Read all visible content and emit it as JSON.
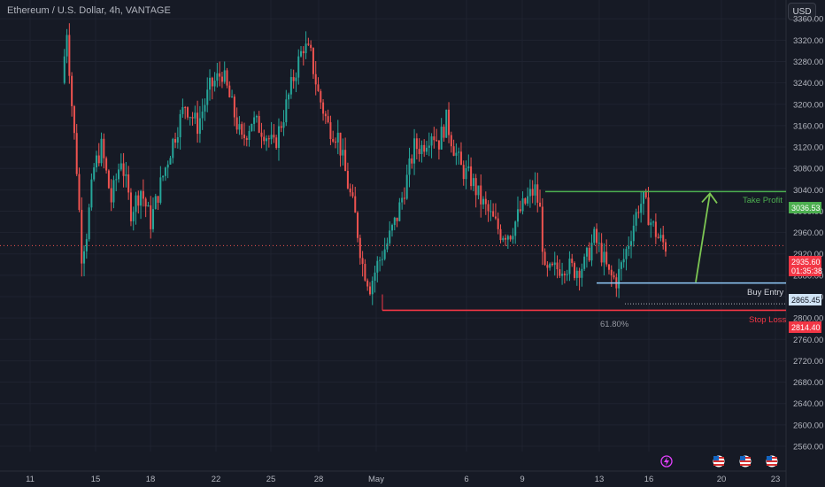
{
  "header": {
    "title": "Ethereum / U.S. Dollar, 4h, VANTAGE",
    "currency_button": "USD"
  },
  "annotations": {
    "take_profit": "Take Profit",
    "buy_entry": "Buy Entry",
    "stop_loss": "Stop Loss",
    "fib_level": "61.80%"
  },
  "badges": {
    "take_profit_price": "3036.53",
    "current_price": "2935.60",
    "countdown": "01:35:38",
    "buy_entry_price": "2865.45",
    "stop_loss_price": "2814.40"
  },
  "colors": {
    "background": "#161a25",
    "up_candle": "#26a69a",
    "down_candle": "#ef5350",
    "take_profit": "#4caf50",
    "buy_entry": "#90caf9",
    "stop_loss": "#f23645",
    "arrow": "#7cc653"
  },
  "icons": [
    "lightning-icon",
    "us-flag-icon",
    "us-flag-icon",
    "us-flag-icon"
  ],
  "chart_data": {
    "type": "candlestick",
    "title": "Ethereum / U.S. Dollar, 4h, VANTAGE",
    "y_ticks": [
      3360,
      3320,
      3280,
      3240,
      3200,
      3160,
      3120,
      3080,
      3040,
      3000,
      2960,
      2920,
      2880,
      2840,
      2800,
      2760,
      2720,
      2680,
      2640,
      2600,
      2560
    ],
    "y_tick_labels": [
      "3360.00",
      "3320.00",
      "3280.00",
      "3240.00",
      "3200.00",
      "3160.00",
      "3120.00",
      "3080.00",
      "3040.00",
      "3000.00",
      "2960.00",
      "2920.00",
      "2880.00",
      "2840.00",
      "2800.00",
      "2760.00",
      "2720.00",
      "2680.00",
      "2640.00",
      "2600.00",
      "2560.00"
    ],
    "ylim": [
      2545,
      3390
    ],
    "x_tick_labels": [
      "11",
      "15",
      "18",
      "22",
      "25",
      "28",
      "May",
      "6",
      "9",
      "13",
      "16",
      "20",
      "23"
    ],
    "grid": true,
    "levels": {
      "take_profit": 3036.53,
      "current": 2935.6,
      "buy_entry": 2865.45,
      "stop_loss": 2814.4,
      "fib_61_8": 2820
    },
    "anchors": [
      [
        0,
        3240
      ],
      [
        2,
        3340
      ],
      [
        4,
        3200
      ],
      [
        6,
        3080
      ],
      [
        8,
        2920
      ],
      [
        10,
        2960
      ],
      [
        13,
        3080
      ],
      [
        16,
        3120
      ],
      [
        20,
        3020
      ],
      [
        24,
        3100
      ],
      [
        28,
        3000
      ],
      [
        32,
        3040
      ],
      [
        36,
        2980
      ],
      [
        40,
        3050
      ],
      [
        45,
        3130
      ],
      [
        50,
        3200
      ],
      [
        55,
        3160
      ],
      [
        60,
        3230
      ],
      [
        65,
        3260
      ],
      [
        70,
        3180
      ],
      [
        73,
        3130
      ],
      [
        77,
        3170
      ],
      [
        82,
        3150
      ],
      [
        86,
        3120
      ],
      [
        90,
        3180
      ],
      [
        94,
        3250
      ],
      [
        98,
        3310
      ],
      [
        101,
        3290
      ],
      [
        104,
        3220
      ],
      [
        108,
        3160
      ],
      [
        112,
        3140
      ],
      [
        116,
        3050
      ],
      [
        119,
        2990
      ],
      [
        122,
        2900
      ],
      [
        125,
        2860
      ],
      [
        128,
        2900
      ],
      [
        132,
        2940
      ],
      [
        136,
        2990
      ],
      [
        140,
        3060
      ],
      [
        143,
        3120
      ],
      [
        146,
        3120
      ],
      [
        150,
        3150
      ],
      [
        153,
        3130
      ],
      [
        156,
        3170
      ],
      [
        159,
        3120
      ],
      [
        162,
        3080
      ],
      [
        166,
        3060
      ],
      [
        170,
        3020
      ],
      [
        174,
        2990
      ],
      [
        178,
        2960
      ],
      [
        182,
        2960
      ],
      [
        186,
        3000
      ],
      [
        190,
        3030
      ],
      [
        192,
        3040
      ],
      [
        194,
        3000
      ],
      [
        196,
        2880
      ],
      [
        200,
        2890
      ],
      [
        204,
        2900
      ],
      [
        208,
        2890
      ],
      [
        212,
        2900
      ],
      [
        216,
        2950
      ],
      [
        219,
        2920
      ],
      [
        222,
        2880
      ],
      [
        225,
        2870
      ],
      [
        228,
        2910
      ],
      [
        231,
        2960
      ],
      [
        234,
        3010
      ],
      [
        236,
        3020
      ],
      [
        239,
        2980
      ],
      [
        242,
        2950
      ],
      [
        245,
        2935
      ]
    ],
    "x_range": [
      0,
      245
    ]
  }
}
